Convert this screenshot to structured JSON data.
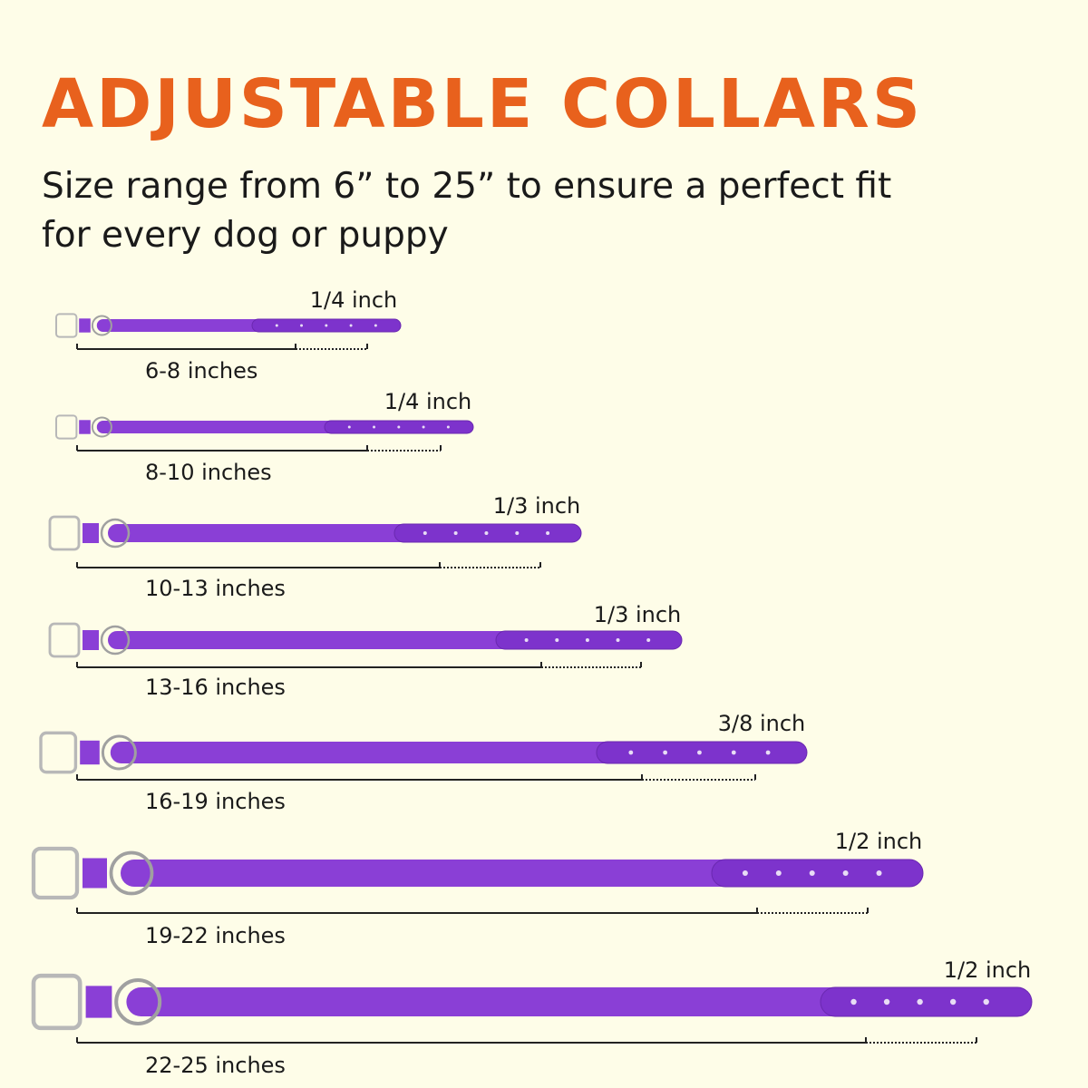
{
  "header": {
    "title": "ADJUSTABLE COLLARS",
    "subtitle": [
      "Size range from 6” to 25” to ensure a perfect fit",
      "for every dog or puppy"
    ]
  },
  "collars": [
    {
      "width": "1/4 inch",
      "size": "6-8 inches"
    },
    {
      "width": "1/4 inch",
      "size": "8-10 inches"
    },
    {
      "width": "1/3 inch",
      "size": "10-13 inches"
    },
    {
      "width": "1/3 inch",
      "size": "13-16 inches"
    },
    {
      "width": "3/8 inch",
      "size": "16-19 inches"
    },
    {
      "width": "1/2 inch",
      "size": "19-22 inches"
    },
    {
      "width": "1/2 inch",
      "size": "22-25 inches"
    }
  ]
}
